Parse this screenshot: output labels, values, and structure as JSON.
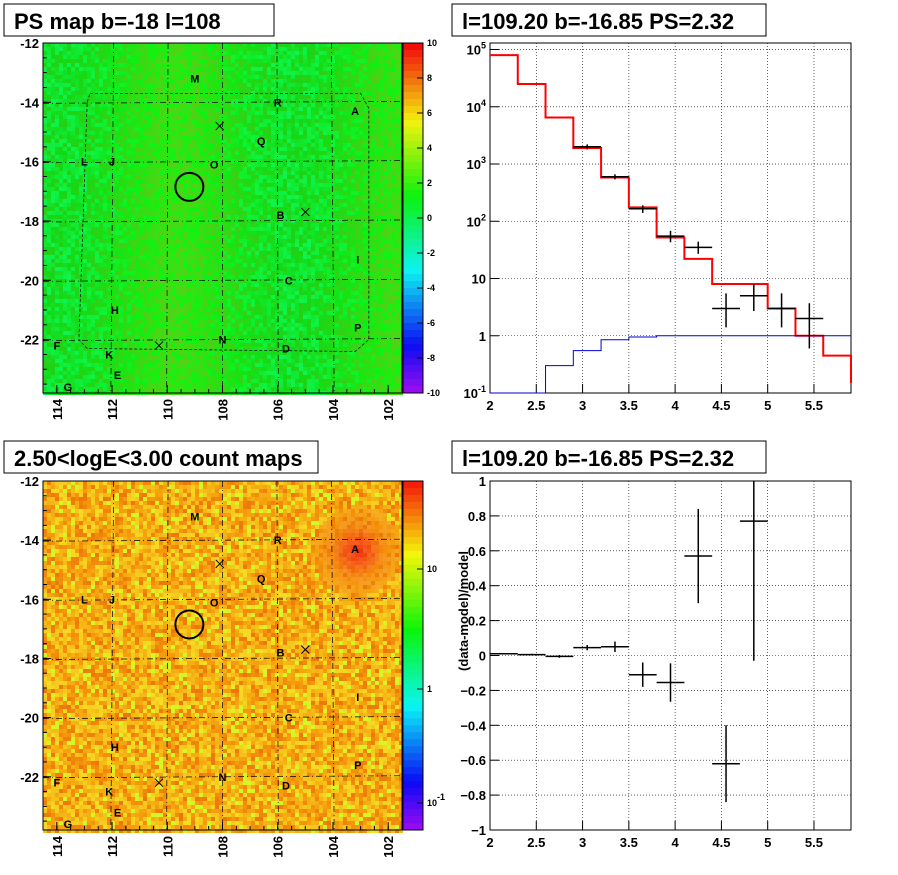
{
  "panels": {
    "tl_title": "PS map b=-18 l=108",
    "tr_title": "l=109.20 b=-16.85 PS=2.32",
    "bl_title": "2.50<logE<3.00 count maps",
    "br_title": "l=109.20 b=-16.85 PS=2.32"
  },
  "chart_data": [
    {
      "type": "heatmap",
      "title": "PS map b=-18 l=108",
      "xlim": [
        114.5,
        101.5
      ],
      "ylim": [
        -23.8,
        -12
      ],
      "xticks": [
        "114",
        "112",
        "110",
        "108",
        "106",
        "104",
        "102"
      ],
      "yticks": [
        "-12",
        "-14",
        "-16",
        "-18",
        "-20",
        "-22"
      ],
      "colorbar": {
        "min": -10,
        "max": 10,
        "ticks": [
          "10",
          "8",
          "6",
          "4",
          "2",
          "0",
          "-2",
          "-4",
          "-6",
          "-8",
          "-10"
        ]
      },
      "sources": [
        {
          "name": "M",
          "l": 109.0,
          "b": -13.2
        },
        {
          "name": "R",
          "l": 106.0,
          "b": -14.0
        },
        {
          "name": "A",
          "l": 103.2,
          "b": -14.3
        },
        {
          "name": "Q",
          "l": 106.6,
          "b": -15.3
        },
        {
          "name": "L",
          "l": 113.0,
          "b": -16.0
        },
        {
          "name": "J",
          "l": 112.0,
          "b": -16.0
        },
        {
          "name": "O",
          "l": 108.3,
          "b": -16.1
        },
        {
          "name": "B",
          "l": 105.9,
          "b": -17.8
        },
        {
          "name": "I",
          "l": 103.1,
          "b": -19.3
        },
        {
          "name": "C",
          "l": 105.6,
          "b": -20.0
        },
        {
          "name": "H",
          "l": 111.9,
          "b": -21.0
        },
        {
          "name": "P",
          "l": 103.1,
          "b": -21.6
        },
        {
          "name": "N",
          "l": 108.0,
          "b": -22.0
        },
        {
          "name": "D",
          "l": 105.7,
          "b": -22.3
        },
        {
          "name": "F",
          "l": 114.0,
          "b": -22.2
        },
        {
          "name": "K",
          "l": 112.1,
          "b": -22.5
        },
        {
          "name": "E",
          "l": 111.8,
          "b": -23.2
        },
        {
          "name": "G",
          "l": 113.6,
          "b": -23.6
        }
      ],
      "crosses": [
        {
          "l": 108.1,
          "b": -14.8
        },
        {
          "l": 105.0,
          "b": -17.7
        },
        {
          "l": 110.3,
          "b": -22.2
        }
      ],
      "circle": {
        "l": 109.2,
        "b": -16.85
      }
    },
    {
      "type": "line",
      "title": "l=109.20 b=-16.85 PS=2.32",
      "log_y": true,
      "xlim": [
        2,
        5.9
      ],
      "ylim": [
        0.1,
        130000
      ],
      "xticks": [
        "2",
        "2.5",
        "3",
        "3.5",
        "4",
        "4.5",
        "5",
        "5.5"
      ],
      "yticks": [
        "10^5",
        "10^4",
        "10^3",
        "10^2",
        "10",
        "1",
        "10^-1"
      ],
      "grid": true,
      "bin_edges": [
        2.0,
        2.3,
        2.6,
        2.9,
        3.2,
        3.5,
        3.8,
        4.1,
        4.4,
        4.7,
        5.0,
        5.3,
        5.6,
        5.9
      ],
      "series": [
        {
          "color": "#ff0000",
          "values": [
            80000,
            25000,
            6500,
            1900,
            580,
            175,
            52,
            22,
            8,
            8,
            3,
            1,
            0.45,
            0.15
          ]
        },
        {
          "color": "#0000cc",
          "values": [
            0.1,
            0.1,
            0.3,
            0.55,
            0.85,
            0.95,
            1,
            1,
            1,
            1,
            1,
            1,
            1,
            1
          ]
        },
        {
          "color": "#000000",
          "points": [
            {
              "x": 3.05,
              "y": 2000,
              "ylo": 1800,
              "yhi": 2200
            },
            {
              "x": 3.35,
              "y": 600,
              "ylo": 540,
              "yhi": 660
            },
            {
              "x": 3.65,
              "y": 165,
              "ylo": 140,
              "yhi": 190
            },
            {
              "x": 3.95,
              "y": 55,
              "ylo": 43,
              "yhi": 68
            },
            {
              "x": 4.25,
              "y": 35,
              "ylo": 27,
              "yhi": 44
            },
            {
              "x": 4.55,
              "y": 3,
              "ylo": 1.4,
              "yhi": 5.5
            },
            {
              "x": 4.85,
              "y": 5,
              "ylo": 2.7,
              "yhi": 8
            },
            {
              "x": 5.15,
              "y": 3,
              "ylo": 1.4,
              "yhi": 5.5
            },
            {
              "x": 5.45,
              "y": 2,
              "ylo": 0.6,
              "yhi": 3.7
            }
          ]
        }
      ]
    },
    {
      "type": "heatmap",
      "title": "2.50<logE<3.00 count maps",
      "xlim": [
        114.5,
        101.5
      ],
      "ylim": [
        -23.8,
        -12
      ],
      "xticks": [
        "114",
        "112",
        "110",
        "108",
        "106",
        "104",
        "102"
      ],
      "yticks": [
        "-12",
        "-14",
        "-16",
        "-18",
        "-20",
        "-22"
      ],
      "colorbar": {
        "log": true,
        "ticks": [
          "10",
          "1",
          "10^-1"
        ]
      },
      "circle": {
        "l": 109.2,
        "b": -16.85
      }
    },
    {
      "type": "scatter",
      "title": "l=109.20 b=-16.85 PS=2.32",
      "ylabel": "(data-model)/model",
      "xlim": [
        2,
        5.9
      ],
      "ylim": [
        -1,
        1
      ],
      "xticks": [
        "2",
        "2.5",
        "3",
        "3.5",
        "4",
        "4.5",
        "5",
        "5.5"
      ],
      "yticks": [
        "1",
        "0.8",
        "0.6",
        "0.4",
        "0.2",
        "0",
        "-0.2",
        "-0.4",
        "-0.6",
        "-0.8",
        "-1"
      ],
      "grid": true,
      "points": [
        {
          "x": 2.15,
          "y": 0.01,
          "err": 0.003
        },
        {
          "x": 2.45,
          "y": 0.005,
          "err": 0.005
        },
        {
          "x": 2.75,
          "y": -0.005,
          "err": 0.008
        },
        {
          "x": 3.05,
          "y": 0.045,
          "err": 0.015
        },
        {
          "x": 3.35,
          "y": 0.05,
          "err": 0.03
        },
        {
          "x": 3.65,
          "y": -0.11,
          "err": 0.07
        },
        {
          "x": 3.95,
          "y": -0.155,
          "err": 0.11
        },
        {
          "x": 4.25,
          "y": 0.57,
          "err": 0.27
        },
        {
          "x": 4.55,
          "y": -0.62,
          "err": 0.22
        },
        {
          "x": 4.85,
          "y": 0.77,
          "err": 0.8
        }
      ]
    }
  ]
}
